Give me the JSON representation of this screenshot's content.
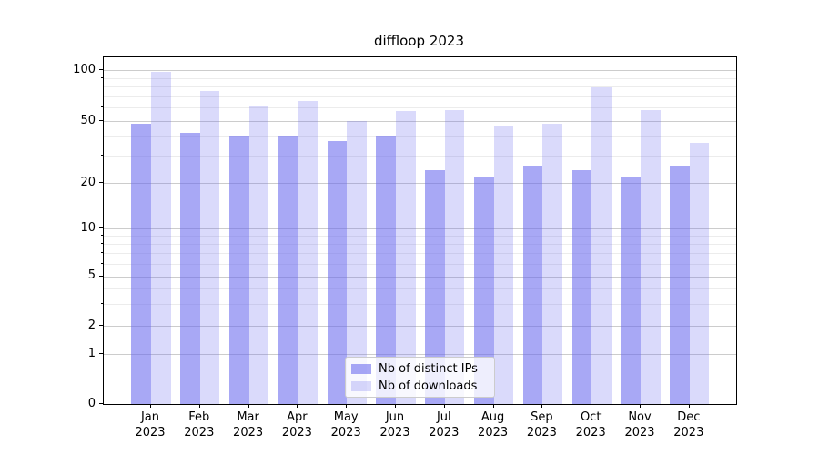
{
  "chart_data": {
    "type": "bar",
    "title": "diffloop 2023",
    "categories": [
      "Jan 2023",
      "Feb 2023",
      "Mar 2023",
      "Apr 2023",
      "May 2023",
      "Jun 2023",
      "Jul 2023",
      "Aug 2023",
      "Sep 2023",
      "Oct 2023",
      "Nov 2023",
      "Dec 2023"
    ],
    "x_tick_labels": [
      {
        "line1": "Jan",
        "line2": "2023"
      },
      {
        "line1": "Feb",
        "line2": "2023"
      },
      {
        "line1": "Mar",
        "line2": "2023"
      },
      {
        "line1": "Apr",
        "line2": "2023"
      },
      {
        "line1": "May",
        "line2": "2023"
      },
      {
        "line1": "Jun",
        "line2": "2023"
      },
      {
        "line1": "Jul",
        "line2": "2023"
      },
      {
        "line1": "Aug",
        "line2": "2023"
      },
      {
        "line1": "Sep",
        "line2": "2023"
      },
      {
        "line1": "Oct",
        "line2": "2023"
      },
      {
        "line1": "Nov",
        "line2": "2023"
      },
      {
        "line1": "Dec",
        "line2": "2023"
      }
    ],
    "series": [
      {
        "name": "Nb of distinct IPs",
        "values": [
          48,
          42,
          40,
          40,
          37,
          40,
          24,
          22,
          26,
          24,
          22,
          26
        ],
        "base_color": "#6666ee",
        "alpha": 0.57
      },
      {
        "name": "Nb of downloads",
        "values": [
          97,
          75,
          62,
          66,
          50,
          57,
          58,
          47,
          48,
          79,
          58,
          36
        ],
        "base_color": "#6666ee",
        "alpha": 0.24
      }
    ],
    "y_axis": {
      "scale": "log",
      "tick_labels": [
        "100",
        "50",
        "20",
        "10",
        "5",
        "2",
        "1",
        "0"
      ],
      "ylim": [
        0,
        110
      ]
    },
    "legend": {
      "position": "lower center",
      "entries": [
        "Nb of distinct IPs",
        "Nb of downloads"
      ]
    },
    "grid": "on",
    "colors": {
      "grid_major": "#cccccc",
      "grid_minor": "#ececec",
      "axis": "#000000",
      "legend_border": "#cccccc"
    }
  }
}
